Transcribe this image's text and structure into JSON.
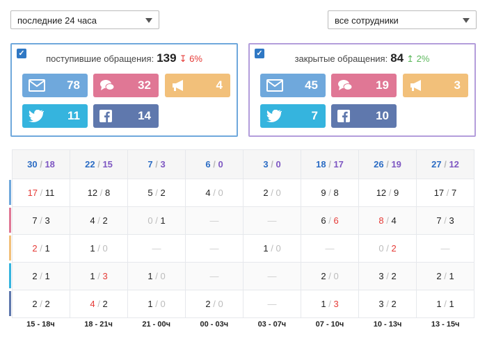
{
  "filters": {
    "period": "последние 24 часа",
    "employees": "все сотрудники"
  },
  "panels": [
    {
      "title": "поступившие обращения:",
      "total": "139",
      "trend": "↧ 6%",
      "trend_color": "#e53935",
      "border": "#6fa8dc",
      "buttons": [
        {
          "icon": "envelope-icon",
          "value": "78",
          "color": "#6fa8dc"
        },
        {
          "icon": "chat-icon",
          "value": "32",
          "color": "#e07795"
        },
        {
          "icon": "megaphone-icon",
          "value": "4",
          "color": "#f2c07a"
        },
        {
          "icon": "twitter-icon",
          "value": "11",
          "color": "#35b4de"
        },
        {
          "icon": "facebook-icon",
          "value": "14",
          "color": "#5f78ad"
        }
      ]
    },
    {
      "title": "закрытые обращения:",
      "total": "84",
      "trend": "↥ 2%",
      "trend_color": "#5cb85c",
      "border": "#b39ddb",
      "buttons": [
        {
          "icon": "envelope-icon",
          "value": "45",
          "color": "#6fa8dc"
        },
        {
          "icon": "chat-icon",
          "value": "19",
          "color": "#e07795"
        },
        {
          "icon": "megaphone-icon",
          "value": "3",
          "color": "#f2c07a"
        },
        {
          "icon": "twitter-icon",
          "value": "7",
          "color": "#35b4de"
        },
        {
          "icon": "facebook-icon",
          "value": "10",
          "color": "#5f78ad"
        }
      ]
    }
  ],
  "table": {
    "totals": [
      [
        "30",
        "18"
      ],
      [
        "22",
        "15"
      ],
      [
        "7",
        "3"
      ],
      [
        "6",
        "0"
      ],
      [
        "3",
        "0"
      ],
      [
        "18",
        "17"
      ],
      [
        "26",
        "19"
      ],
      [
        "27",
        "12"
      ]
    ],
    "row_colors": [
      "#6fa8dc",
      "#e07795",
      "#f2c07a",
      "#35b4de",
      "#5f78ad"
    ],
    "rows": [
      [
        [
          "17",
          "11",
          "a"
        ],
        [
          "12",
          "8"
        ],
        [
          "5",
          "2"
        ],
        [
          "4",
          "0"
        ],
        [
          "2",
          "0"
        ],
        [
          "9",
          "8"
        ],
        [
          "12",
          "9"
        ],
        [
          "17",
          "7"
        ]
      ],
      [
        [
          "7",
          "3"
        ],
        [
          "4",
          "2"
        ],
        [
          "0",
          "1"
        ],
        null,
        null,
        [
          "6",
          "6",
          "b"
        ],
        [
          "8",
          "4",
          "a"
        ],
        [
          "7",
          "3"
        ]
      ],
      [
        [
          "2",
          "1",
          "a"
        ],
        [
          "1",
          "0"
        ],
        null,
        null,
        [
          "1",
          "0"
        ],
        null,
        [
          "0",
          "2",
          "b"
        ],
        null
      ],
      [
        [
          "2",
          "1"
        ],
        [
          "1",
          "3",
          "b"
        ],
        [
          "1",
          "0"
        ],
        null,
        null,
        [
          "2",
          "0"
        ],
        [
          "3",
          "2"
        ],
        [
          "2",
          "1"
        ]
      ],
      [
        [
          "2",
          "2"
        ],
        [
          "4",
          "2",
          "a"
        ],
        [
          "1",
          "0"
        ],
        [
          "2",
          "0"
        ],
        null,
        [
          "1",
          "3",
          "b"
        ],
        [
          "3",
          "2"
        ],
        [
          "1",
          "1"
        ]
      ]
    ],
    "time_labels": [
      "15 - 18ч",
      "18 - 21ч",
      "21 - 00ч",
      "00 - 03ч",
      "03 - 07ч",
      "07 - 10ч",
      "10 - 13ч",
      "13 - 15ч"
    ]
  }
}
